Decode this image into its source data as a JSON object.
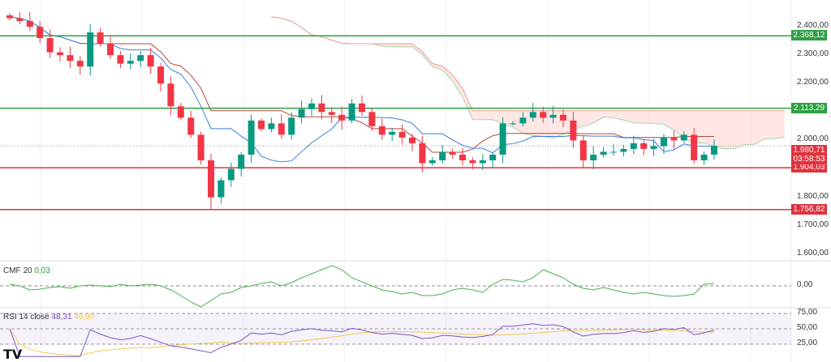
{
  "chart_data": {
    "type": "candlestick",
    "price_axis": {
      "ticks": [
        2400,
        2300,
        2200,
        2000,
        1800,
        1700,
        1600
      ],
      "tick_labels": [
        "2.400,00",
        "2.300,00",
        "2.200,00",
        "2.000,00",
        "1.800,00",
        "1.700,00",
        "1.600,00"
      ],
      "range": [
        1594,
        2494
      ]
    },
    "levels": [
      {
        "value": 2368.12,
        "label": "2.368,12",
        "color": "#2ea043"
      },
      {
        "value": 2113.29,
        "label": "2.113,29",
        "color": "#2ea043"
      },
      {
        "value": 1904.03,
        "label": "1.904,03",
        "color": "#e0323e"
      },
      {
        "value": 1756.82,
        "label": "1.756,82",
        "color": "#e0323e"
      }
    ],
    "last_price": {
      "value": 1980.71,
      "label": "1.980,71",
      "countdown": "03:58:53",
      "color": "#e0323e"
    },
    "closes": [
      2430,
      2420,
      2400,
      2360,
      2310,
      2300,
      2280,
      2260,
      2380,
      2340,
      2300,
      2270,
      2280,
      2300,
      2260,
      2200,
      2120,
      2080,
      2020,
      1930,
      1800,
      1860,
      1900,
      1950,
      2070,
      2040,
      2060,
      2020,
      2080,
      2110,
      2130,
      2100,
      2090,
      2070,
      2130,
      2100,
      2050,
      2020,
      2030,
      2010,
      1990,
      1920,
      1930,
      1960,
      1950,
      1930,
      1920,
      1930,
      1950,
      2060,
      2060,
      2080,
      2100,
      2080,
      2090,
      2070,
      2000,
      1930,
      1950,
      1960,
      1960,
      1970,
      1990,
      1970,
      1980,
      2010,
      2000,
      2020,
      1930,
      1950,
      1980.71
    ],
    "cmf": {
      "name": "CMF 20",
      "value": "0,03",
      "zero_label": "0,00",
      "values": [
        0.02,
        0.0,
        -0.05,
        -0.04,
        -0.02,
        -0.01,
        -0.03,
        0.0,
        0.01,
        0.0,
        -0.01,
        0.02,
        0.0,
        0.01,
        0.02,
        0.0,
        -0.05,
        -0.12,
        -0.2,
        -0.26,
        -0.18,
        -0.1,
        -0.08,
        -0.02,
        0.0,
        0.03,
        0.05,
        0.0,
        0.04,
        0.1,
        0.15,
        0.2,
        0.25,
        0.2,
        0.1,
        0.05,
        0.0,
        -0.05,
        -0.07,
        -0.1,
        -0.08,
        -0.12,
        -0.12,
        -0.1,
        -0.05,
        -0.03,
        -0.05,
        -0.08,
        0.02,
        0.08,
        0.07,
        0.05,
        0.1,
        0.2,
        0.15,
        0.1,
        0.02,
        -0.03,
        -0.05,
        -0.02,
        -0.05,
        -0.08,
        -0.1,
        -0.08,
        -0.1,
        -0.12,
        -0.13,
        -0.12,
        -0.1,
        0.02,
        0.03
      ]
    },
    "rsi": {
      "name": "RSI 14 close",
      "value": "48,31",
      "ma_value": "46,90",
      "ticks": [
        75,
        50,
        25
      ],
      "tick_labels": [
        "75,00",
        "50,00",
        "25,00"
      ]
    }
  },
  "watermark": "TV"
}
